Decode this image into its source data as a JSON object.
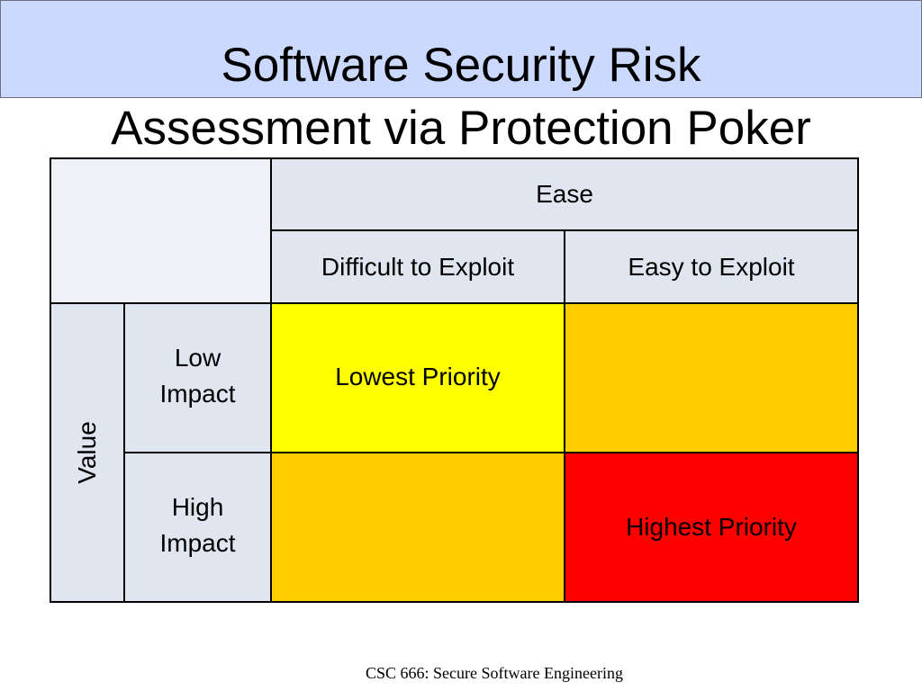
{
  "title": {
    "line1": "Software Security Risk",
    "line2": "Assessment via Protection Poker"
  },
  "matrix": {
    "ease_header": "Ease",
    "col_difficult": "Difficult to Exploit",
    "col_easy": "Easy to Exploit",
    "value_header": "Value",
    "row_low_line1": "Low",
    "row_low_line2": "Impact",
    "row_high_line1": "High",
    "row_high_line2": "Impact",
    "low_difficult": "Lowest Priority",
    "low_easy": "",
    "high_difficult": "",
    "high_easy": "Highest Priority",
    "colors": {
      "header_fill": "#dfe6f0",
      "lowest": "#ffff00",
      "medium": "#ffcc00",
      "highest": "#ff0000"
    }
  },
  "footer": "CSC 666: Secure Software Engineering"
}
